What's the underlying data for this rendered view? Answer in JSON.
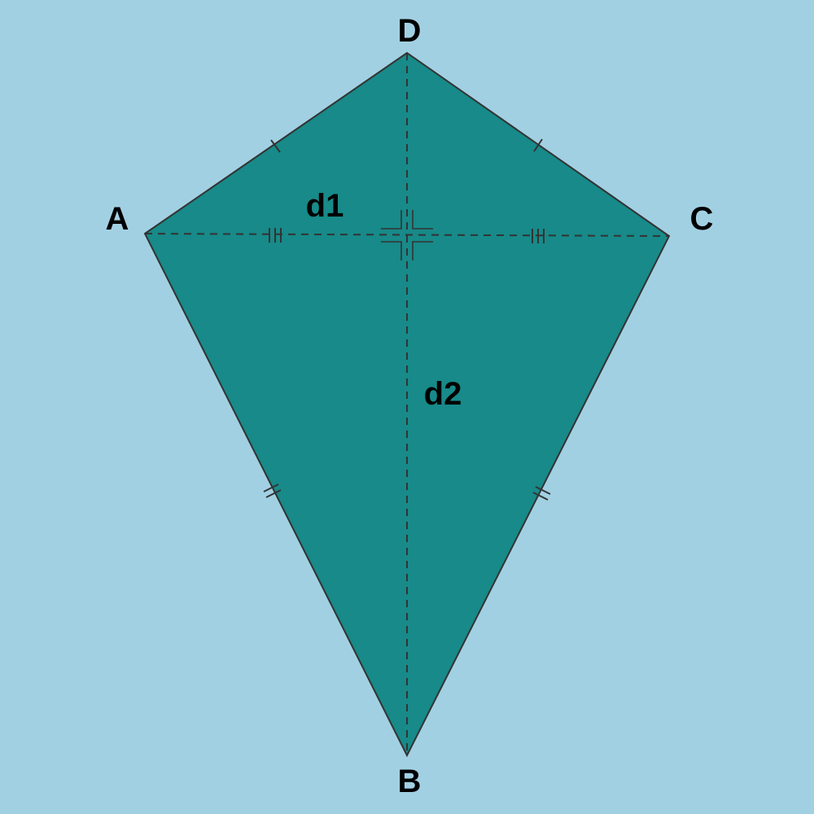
{
  "figure": {
    "background_color": "#a2d0e3",
    "kite_fill": "#178a89",
    "stroke_color": "#333333",
    "vertices": {
      "A": "A",
      "B": "B",
      "C": "C",
      "D": "D"
    },
    "diagonals": {
      "d1": "d1",
      "d2": "d2"
    }
  }
}
